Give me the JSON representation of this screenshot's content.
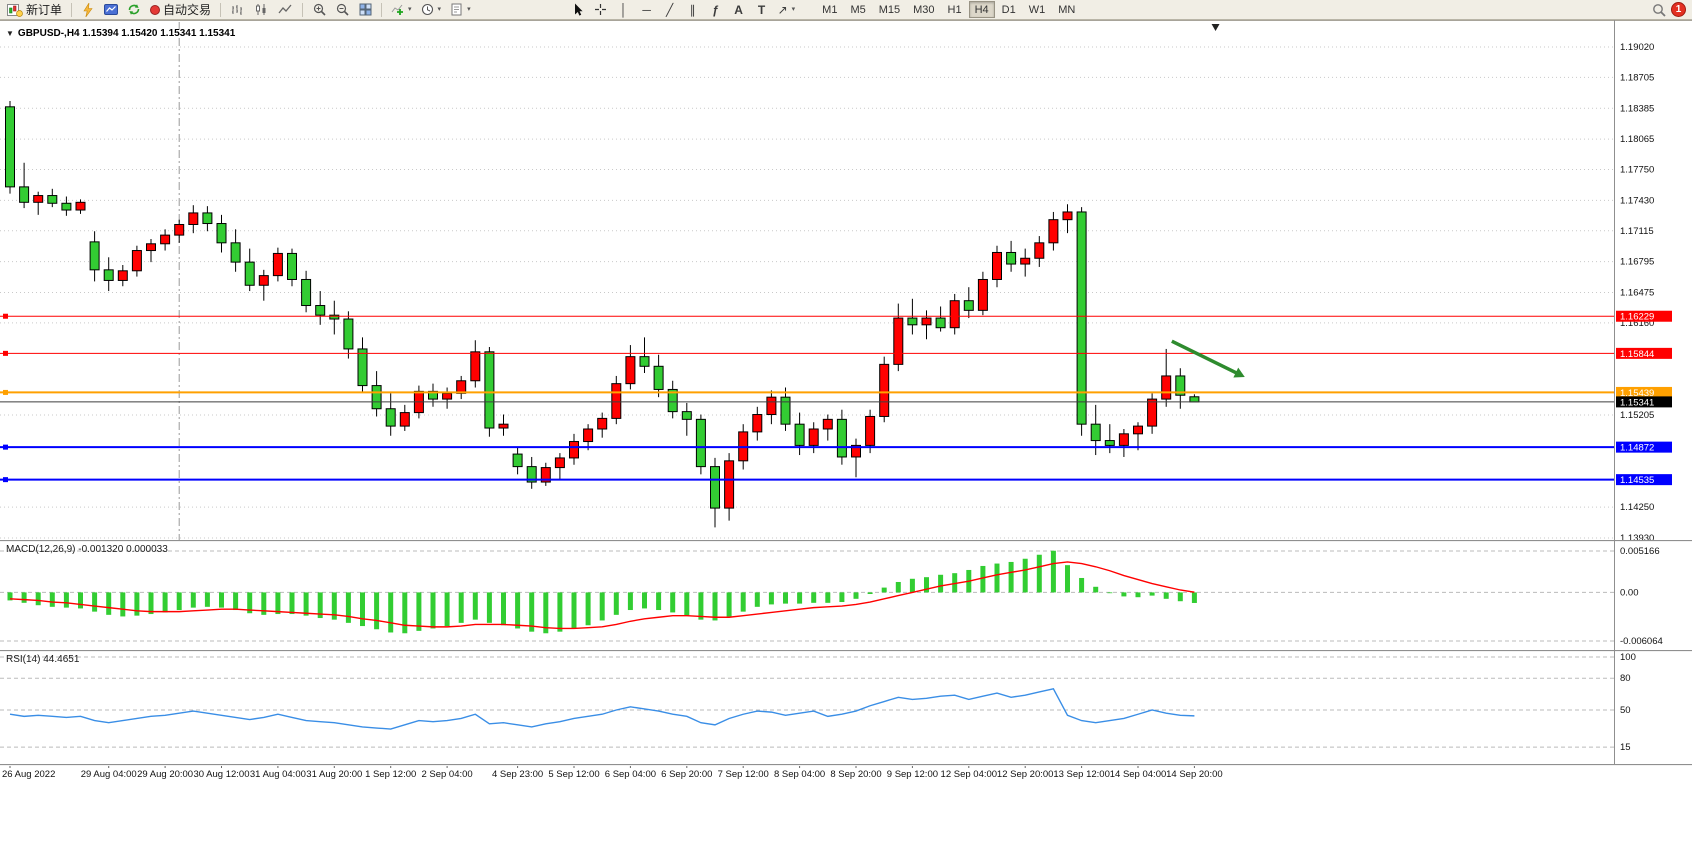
{
  "toolbar": {
    "new_order": "新订单",
    "auto_trading": "自动交易",
    "timeframes": [
      "M1",
      "M5",
      "M15",
      "M30",
      "H1",
      "H4",
      "D1",
      "W1",
      "MN"
    ],
    "active_timeframe": "H4",
    "notification_badge": "1",
    "tool_icons": {
      "vertical_line": "│",
      "horizontal_line": "─",
      "trendline": "╱",
      "channel": "∥",
      "fibonacci": "ƒ",
      "text": "A",
      "label": "T",
      "arrow": "↗",
      "dropdown": "▾",
      "symbol_caret": "▼"
    }
  },
  "symbol_header": {
    "text": "GBPUSD-,H4  1.15394 1.15420 1.15341 1.15341"
  },
  "indicators": {
    "macd_label": "MACD(12,26,9)",
    "macd_values": "-0.001320 0.000033",
    "rsi_label": "RSI(14)",
    "rsi_value": "44.4651"
  },
  "chart_data": {
    "type": "candlestick",
    "symbol": "GBPUSD-",
    "period": "H4",
    "ohlc_current": {
      "open": 1.15394,
      "high": 1.1542,
      "low": 1.15341,
      "close": 1.15341
    },
    "price_axis": {
      "min": 1.1393,
      "max": 1.1902,
      "ticks": [
        "1.19020",
        "1.18705",
        "1.18385",
        "1.18065",
        "1.17750",
        "1.17430",
        "1.17115",
        "1.16795",
        "1.16475",
        "1.16160",
        "1.15205",
        "1.14250",
        "1.13930"
      ]
    },
    "colors": {
      "up": "#ff0000",
      "down": "#33cc33",
      "wick": "#000000",
      "grid": "#c9c9c9",
      "macd_hist": "#32cd32",
      "macd_signal": "#ff0000",
      "rsi": "#3a8ee6",
      "arrow": "#2e8b2e"
    },
    "candles": [
      [
        1.184,
        1.1846,
        1.175,
        1.1757
      ],
      [
        1.1757,
        1.1782,
        1.1735,
        1.1741
      ],
      [
        1.1741,
        1.1752,
        1.1728,
        1.1748
      ],
      [
        1.1748,
        1.1755,
        1.1736,
        1.174
      ],
      [
        1.174,
        1.1747,
        1.1727,
        1.1733
      ],
      [
        1.1733,
        1.1744,
        1.1729,
        1.1741
      ],
      [
        1.17,
        1.1711,
        1.1659,
        1.1671
      ],
      [
        1.1671,
        1.1684,
        1.1649,
        1.166
      ],
      [
        1.166,
        1.1676,
        1.1654,
        1.167
      ],
      [
        1.167,
        1.1696,
        1.1664,
        1.1691
      ],
      [
        1.1691,
        1.1703,
        1.1679,
        1.1698
      ],
      [
        1.1698,
        1.1713,
        1.1691,
        1.1707
      ],
      [
        1.1707,
        1.1723,
        1.1699,
        1.1718
      ],
      [
        1.1718,
        1.1738,
        1.1709,
        1.173
      ],
      [
        1.173,
        1.1737,
        1.1711,
        1.1719
      ],
      [
        1.1719,
        1.1728,
        1.1689,
        1.1699
      ],
      [
        1.1699,
        1.1713,
        1.1669,
        1.1679
      ],
      [
        1.1679,
        1.1693,
        1.1649,
        1.1655
      ],
      [
        1.1655,
        1.1671,
        1.1639,
        1.1665
      ],
      [
        1.1665,
        1.1694,
        1.1659,
        1.1688
      ],
      [
        1.1688,
        1.1693,
        1.1654,
        1.1661
      ],
      [
        1.1661,
        1.167,
        1.1627,
        1.1634
      ],
      [
        1.1634,
        1.1649,
        1.1614,
        1.1624
      ],
      [
        1.1624,
        1.1639,
        1.1604,
        1.162
      ],
      [
        1.162,
        1.1628,
        1.1579,
        1.1589
      ],
      [
        1.1589,
        1.1601,
        1.1544,
        1.1551
      ],
      [
        1.1551,
        1.1566,
        1.1519,
        1.1527
      ],
      [
        1.1527,
        1.1543,
        1.1499,
        1.1509
      ],
      [
        1.1509,
        1.1531,
        1.1504,
        1.1523
      ],
      [
        1.1523,
        1.1551,
        1.1517,
        1.1545
      ],
      [
        1.1545,
        1.1553,
        1.1529,
        1.1537
      ],
      [
        1.1537,
        1.1549,
        1.1527,
        1.1543
      ],
      [
        1.1543,
        1.1561,
        1.1537,
        1.1556
      ],
      [
        1.1556,
        1.1598,
        1.1549,
        1.1586
      ],
      [
        1.1586,
        1.1591,
        1.1498,
        1.1507
      ],
      [
        1.1507,
        1.1521,
        1.1499,
        1.1511
      ],
      [
        1.148,
        1.1487,
        1.1459,
        1.1467
      ],
      [
        1.1467,
        1.1477,
        1.1444,
        1.1451
      ],
      [
        1.1451,
        1.1471,
        1.1447,
        1.1466
      ],
      [
        1.1466,
        1.1481,
        1.1454,
        1.1476
      ],
      [
        1.1476,
        1.1501,
        1.1469,
        1.1493
      ],
      [
        1.1493,
        1.1511,
        1.1484,
        1.1506
      ],
      [
        1.1506,
        1.1523,
        1.1497,
        1.1517
      ],
      [
        1.1517,
        1.1561,
        1.1511,
        1.1553
      ],
      [
        1.1553,
        1.1593,
        1.1547,
        1.1581
      ],
      [
        1.1581,
        1.1601,
        1.1564,
        1.1571
      ],
      [
        1.1571,
        1.1583,
        1.1539,
        1.1547
      ],
      [
        1.1547,
        1.1556,
        1.1517,
        1.1524
      ],
      [
        1.1524,
        1.1533,
        1.1499,
        1.1516
      ],
      [
        1.1516,
        1.1521,
        1.1459,
        1.1467
      ],
      [
        1.1467,
        1.1476,
        1.1404,
        1.1424
      ],
      [
        1.1424,
        1.1481,
        1.1411,
        1.1473
      ],
      [
        1.1473,
        1.1511,
        1.1464,
        1.1503
      ],
      [
        1.1503,
        1.1529,
        1.1494,
        1.1521
      ],
      [
        1.1521,
        1.1546,
        1.1511,
        1.1539
      ],
      [
        1.1539,
        1.1549,
        1.1504,
        1.1511
      ],
      [
        1.1511,
        1.1523,
        1.1479,
        1.1489
      ],
      [
        1.1489,
        1.1513,
        1.1481,
        1.1506
      ],
      [
        1.1506,
        1.1521,
        1.1494,
        1.1516
      ],
      [
        1.1516,
        1.1526,
        1.1469,
        1.1477
      ],
      [
        1.1477,
        1.1496,
        1.1456,
        1.1489
      ],
      [
        1.1489,
        1.1526,
        1.1481,
        1.1519
      ],
      [
        1.1519,
        1.1581,
        1.1513,
        1.1573
      ],
      [
        1.1573,
        1.1636,
        1.1566,
        1.1621
      ],
      [
        1.1621,
        1.1641,
        1.1604,
        1.1614
      ],
      [
        1.1614,
        1.1629,
        1.1599,
        1.1621
      ],
      [
        1.1621,
        1.1633,
        1.1607,
        1.1611
      ],
      [
        1.1611,
        1.1646,
        1.1604,
        1.1639
      ],
      [
        1.1639,
        1.1653,
        1.1621,
        1.1629
      ],
      [
        1.1629,
        1.1669,
        1.1624,
        1.1661
      ],
      [
        1.1661,
        1.1696,
        1.1653,
        1.1689
      ],
      [
        1.1689,
        1.1701,
        1.1669,
        1.1677
      ],
      [
        1.1677,
        1.1693,
        1.1664,
        1.1683
      ],
      [
        1.1683,
        1.1706,
        1.1674,
        1.1699
      ],
      [
        1.1699,
        1.1731,
        1.1691,
        1.1723
      ],
      [
        1.1723,
        1.1739,
        1.1709,
        1.1731
      ],
      [
        1.1731,
        1.1736,
        1.1499,
        1.1511
      ],
      [
        1.1511,
        1.1531,
        1.1479,
        1.1494
      ],
      [
        1.1494,
        1.1511,
        1.1481,
        1.1489
      ],
      [
        1.1489,
        1.1506,
        1.1477,
        1.1501
      ],
      [
        1.1501,
        1.1513,
        1.1484,
        1.1509
      ],
      [
        1.1509,
        1.1543,
        1.1501,
        1.1537
      ],
      [
        1.1537,
        1.1589,
        1.1529,
        1.1561
      ],
      [
        1.1561,
        1.1569,
        1.1527,
        1.1541
      ],
      [
        1.15394,
        1.1542,
        1.15341,
        1.15341
      ]
    ],
    "hlines": [
      {
        "price": 1.16229,
        "label": "1.16229",
        "color": "#ff0000",
        "label_bg": "#ff0000",
        "width": 1,
        "handle": true
      },
      {
        "price": 1.15844,
        "label": "1.15844",
        "color": "#ff0000",
        "label_bg": "#ff0000",
        "width": 1,
        "handle": true
      },
      {
        "price": 1.15439,
        "label": "1.15439",
        "color": "#ffa000",
        "label_bg": "#ffa000",
        "width": 2,
        "handle": true
      },
      {
        "price": 1.15341,
        "label": "1.15341",
        "color": "#3f3f3f",
        "label_bg": "#000000",
        "width": 1,
        "handle": false
      },
      {
        "price": 1.14872,
        "label": "1.14872",
        "color": "#0000ff",
        "label_bg": "#0000ff",
        "width": 2,
        "handle": true
      },
      {
        "price": 1.14535,
        "label": "1.14535",
        "color": "#0000ff",
        "label_bg": "#0000ff",
        "width": 2,
        "handle": true
      }
    ],
    "separator_bar": 12,
    "shift_marker_bar": 85,
    "arrow_annotation": {
      "from_bar": 82.4,
      "from_price": 1.1597,
      "to_bar": 87.0,
      "to_price": 1.1564
    },
    "time_labels": [
      [
        "26 Aug 2022",
        0
      ],
      [
        "29 Aug 04:00",
        7
      ],
      [
        "29 Aug 20:00",
        11
      ],
      [
        "30 Aug 12:00",
        15
      ],
      [
        "31 Aug 04:00",
        19
      ],
      [
        "31 Aug 20:00",
        23
      ],
      [
        "1 Sep 12:00",
        27
      ],
      [
        "2 Sep 04:00",
        31
      ],
      [
        "4 Sep 23:00",
        36
      ],
      [
        "5 Sep 12:00",
        40
      ],
      [
        "6 Sep 04:00",
        44
      ],
      [
        "6 Sep 20:00",
        48
      ],
      [
        "7 Sep 12:00",
        52
      ],
      [
        "8 Sep 04:00",
        56
      ],
      [
        "8 Sep 20:00",
        60
      ],
      [
        "9 Sep 12:00",
        64
      ],
      [
        "12 Sep 04:00",
        68
      ],
      [
        "12 Sep 20:00",
        72
      ],
      [
        "13 Sep 12:00",
        76
      ],
      [
        "14 Sep 04:00",
        80
      ],
      [
        "14 Sep 20:00",
        84
      ]
    ],
    "macd": {
      "name": "MACD(12,26,9)",
      "value": -0.00132,
      "signal_value": 3.3e-05,
      "axis": [
        "0.005166",
        "0.00",
        "-0.006064"
      ],
      "axis_max": 0.005166,
      "axis_min": -0.006064,
      "histogram": [
        -0.001,
        -0.0013,
        -0.0016,
        -0.0018,
        -0.0019,
        -0.002,
        -0.0024,
        -0.0028,
        -0.003,
        -0.0029,
        -0.0027,
        -0.0025,
        -0.0022,
        -0.0019,
        -0.0018,
        -0.0019,
        -0.0022,
        -0.0026,
        -0.0028,
        -0.0027,
        -0.0027,
        -0.0029,
        -0.0032,
        -0.0034,
        -0.0038,
        -0.0042,
        -0.0046,
        -0.005,
        -0.0051,
        -0.0048,
        -0.0045,
        -0.0042,
        -0.0038,
        -0.0034,
        -0.0038,
        -0.0041,
        -0.0045,
        -0.0049,
        -0.0051,
        -0.0049,
        -0.0045,
        -0.0041,
        -0.0035,
        -0.0028,
        -0.0022,
        -0.002,
        -0.0022,
        -0.0025,
        -0.0029,
        -0.0034,
        -0.0035,
        -0.003,
        -0.0024,
        -0.0018,
        -0.0015,
        -0.0014,
        -0.0014,
        -0.0013,
        -0.0013,
        -0.0012,
        -0.0008,
        -0.0002,
        0.0006,
        0.0013,
        0.0017,
        0.0019,
        0.0022,
        0.0024,
        0.0028,
        0.0033,
        0.0036,
        0.0038,
        0.0042,
        0.0047,
        0.0052,
        0.0034,
        0.0018,
        0.0007,
        -0.0001,
        -0.0005,
        -0.0006,
        -0.0004,
        -0.0008,
        -0.0011,
        -0.00132
      ],
      "signal": [
        -0.0008,
        -0.0009,
        -0.001,
        -0.0012,
        -0.0013,
        -0.0015,
        -0.0017,
        -0.0019,
        -0.0021,
        -0.0023,
        -0.0024,
        -0.0024,
        -0.0024,
        -0.0023,
        -0.0022,
        -0.0021,
        -0.0021,
        -0.0022,
        -0.0023,
        -0.0024,
        -0.0025,
        -0.0026,
        -0.0027,
        -0.0028,
        -0.003,
        -0.0033,
        -0.0035,
        -0.0038,
        -0.0041,
        -0.0042,
        -0.0043,
        -0.0043,
        -0.0042,
        -0.004,
        -0.004,
        -0.004,
        -0.0041,
        -0.0042,
        -0.0044,
        -0.0045,
        -0.0045,
        -0.0044,
        -0.0043,
        -0.004,
        -0.0036,
        -0.0033,
        -0.0031,
        -0.0029,
        -0.0029,
        -0.003,
        -0.0031,
        -0.0031,
        -0.0029,
        -0.0027,
        -0.0025,
        -0.0023,
        -0.0021,
        -0.0019,
        -0.0018,
        -0.0017,
        -0.0015,
        -0.0012,
        -0.0008,
        -0.0004,
        0.0,
        0.0004,
        0.0008,
        0.0011,
        0.0014,
        0.0018,
        0.0022,
        0.0025,
        0.0028,
        0.0032,
        0.0036,
        0.0038,
        0.0036,
        0.0032,
        0.0027,
        0.0021,
        0.0016,
        0.0011,
        0.0007,
        0.0003,
        3.3e-05
      ]
    },
    "rsi": {
      "name": "RSI(14)",
      "value": 44.4651,
      "levels": [
        100,
        80,
        50,
        15
      ],
      "axis": [
        "100",
        "80",
        "50",
        "15"
      ],
      "values": [
        46,
        44,
        45,
        44,
        43,
        44,
        40,
        38,
        40,
        42,
        44,
        45,
        47,
        49,
        47,
        45,
        43,
        41,
        43,
        46,
        43,
        40,
        39,
        38,
        36,
        34,
        33,
        32,
        36,
        40,
        39,
        40,
        42,
        46,
        37,
        38,
        36,
        34,
        37,
        39,
        42,
        44,
        46,
        50,
        53,
        51,
        49,
        46,
        44,
        38,
        36,
        42,
        46,
        49,
        48,
        45,
        47,
        49,
        44,
        46,
        49,
        54,
        58,
        62,
        60,
        61,
        63,
        64,
        60,
        63,
        66,
        62,
        64,
        67,
        70,
        45,
        40,
        38,
        40,
        42,
        46,
        50,
        47,
        45,
        44.4651
      ]
    }
  }
}
